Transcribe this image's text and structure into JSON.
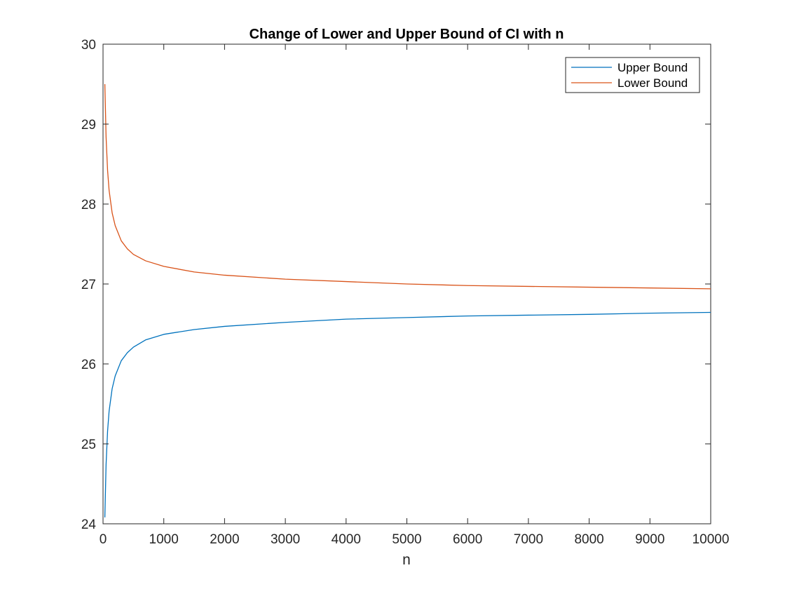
{
  "chart_data": {
    "type": "line",
    "title": "Change of Lower and Upper Bound of CI with n",
    "xlabel": "n",
    "ylabel": "",
    "xlim": [
      0,
      10000
    ],
    "ylim": [
      24,
      30
    ],
    "xticks": [
      0,
      1000,
      2000,
      3000,
      4000,
      5000,
      6000,
      7000,
      8000,
      9000,
      10000
    ],
    "xtick_labels": [
      "0",
      "1000",
      "2000",
      "3000",
      "4000",
      "5000",
      "6000",
      "7000",
      "8000",
      "9000",
      "10000"
    ],
    "yticks": [
      24,
      25,
      26,
      27,
      28,
      29,
      30
    ],
    "ytick_labels": [
      "24",
      "25",
      "26",
      "27",
      "28",
      "29",
      "30"
    ],
    "grid": false,
    "legend_position": "top-right",
    "series": [
      {
        "name": "Upper Bound",
        "color": "#0072BD",
        "x": [
          30,
          50,
          75,
          100,
          150,
          200,
          300,
          400,
          500,
          700,
          1000,
          1500,
          2000,
          3000,
          4000,
          5000,
          6000,
          7000,
          8000,
          9000,
          10000
        ],
        "y": [
          24.08,
          24.74,
          25.16,
          25.41,
          25.69,
          25.85,
          26.04,
          26.14,
          26.21,
          26.3,
          26.37,
          26.43,
          26.47,
          26.52,
          26.56,
          26.58,
          26.6,
          26.61,
          26.62,
          26.635,
          26.645
        ]
      },
      {
        "name": "Lower Bound",
        "color": "#D95319",
        "x": [
          30,
          50,
          75,
          100,
          150,
          200,
          300,
          400,
          500,
          700,
          1000,
          1500,
          2000,
          3000,
          4000,
          5000,
          6000,
          7000,
          8000,
          9000,
          10000
        ],
        "y": [
          29.5,
          28.84,
          28.42,
          28.17,
          27.89,
          27.73,
          27.54,
          27.44,
          27.37,
          27.29,
          27.22,
          27.15,
          27.11,
          27.06,
          27.03,
          27.0,
          26.98,
          26.97,
          26.96,
          26.95,
          26.94
        ]
      }
    ]
  }
}
